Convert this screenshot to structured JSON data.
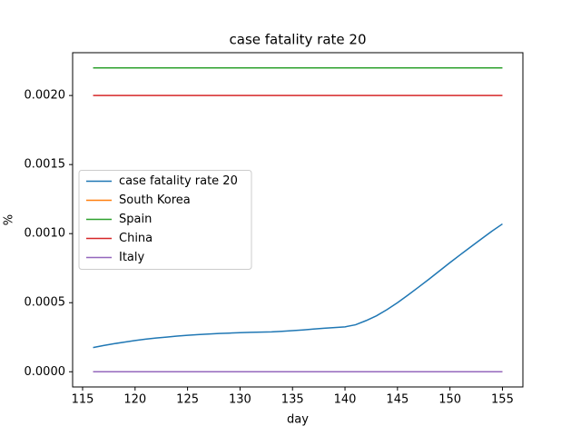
{
  "chart_data": {
    "type": "line",
    "title": "case fatality rate 20",
    "xlabel": "day",
    "ylabel": "%",
    "x": [
      116,
      117,
      118,
      119,
      120,
      121,
      122,
      123,
      124,
      125,
      126,
      127,
      128,
      129,
      130,
      131,
      132,
      133,
      134,
      135,
      136,
      137,
      138,
      139,
      140,
      141,
      142,
      143,
      144,
      145,
      146,
      147,
      148,
      149,
      150,
      151,
      152,
      153,
      154,
      155
    ],
    "series": [
      {
        "name": "case fatality rate 20",
        "color": "#1f77b4",
        "values": [
          0.000175,
          0.00019,
          0.000203,
          0.000215,
          0.000226,
          0.000236,
          0.000244,
          0.000251,
          0.000258,
          0.000264,
          0.000269,
          0.000273,
          0.000277,
          0.00028,
          0.000283,
          0.000285,
          0.000287,
          0.000289,
          0.000293,
          0.000298,
          0.000303,
          0.000309,
          0.000315,
          0.00032,
          0.000325,
          0.00034,
          0.00037,
          0.000405,
          0.00045,
          0.0005,
          0.000555,
          0.000612,
          0.00067,
          0.00073,
          0.00079,
          0.000848,
          0.000905,
          0.000962,
          0.001018,
          0.00107
        ]
      },
      {
        "name": "South Korea",
        "color": "#ff7f0e",
        "values": [
          0,
          0,
          0,
          0,
          0,
          0,
          0,
          0,
          0,
          0,
          0,
          0,
          0,
          0,
          0,
          0,
          0,
          0,
          0,
          0,
          0,
          0,
          0,
          0,
          0,
          0,
          0,
          0,
          0,
          0,
          0,
          0,
          0,
          0,
          0,
          0,
          0,
          0,
          0,
          0
        ]
      },
      {
        "name": "Spain",
        "color": "#2ca02c",
        "values": [
          0.0022,
          0.0022,
          0.0022,
          0.0022,
          0.0022,
          0.0022,
          0.0022,
          0.0022,
          0.0022,
          0.0022,
          0.0022,
          0.0022,
          0.0022,
          0.0022,
          0.0022,
          0.0022,
          0.0022,
          0.0022,
          0.0022,
          0.0022,
          0.0022,
          0.0022,
          0.0022,
          0.0022,
          0.0022,
          0.0022,
          0.0022,
          0.0022,
          0.0022,
          0.0022,
          0.0022,
          0.0022,
          0.0022,
          0.0022,
          0.0022,
          0.0022,
          0.0022,
          0.0022,
          0.0022,
          0.0022
        ]
      },
      {
        "name": "China",
        "color": "#d62728",
        "values": [
          0.002,
          0.002,
          0.002,
          0.002,
          0.002,
          0.002,
          0.002,
          0.002,
          0.002,
          0.002,
          0.002,
          0.002,
          0.002,
          0.002,
          0.002,
          0.002,
          0.002,
          0.002,
          0.002,
          0.002,
          0.002,
          0.002,
          0.002,
          0.002,
          0.002,
          0.002,
          0.002,
          0.002,
          0.002,
          0.002,
          0.002,
          0.002,
          0.002,
          0.002,
          0.002,
          0.002,
          0.002,
          0.002,
          0.002,
          0.002
        ]
      },
      {
        "name": "Italy",
        "color": "#9467bd",
        "values": [
          0,
          0,
          0,
          0,
          0,
          0,
          0,
          0,
          0,
          0,
          0,
          0,
          0,
          0,
          0,
          0,
          0,
          0,
          0,
          0,
          0,
          0,
          0,
          0,
          0,
          0,
          0,
          0,
          0,
          0,
          0,
          0,
          0,
          0,
          0,
          0,
          0,
          0,
          0,
          0
        ]
      }
    ],
    "xlim": [
      114.05,
      156.95
    ],
    "xticks": [
      115,
      120,
      125,
      130,
      135,
      140,
      145,
      150,
      155
    ],
    "ylim": [
      -0.00011,
      0.00231
    ],
    "yticks": [
      {
        "value": 0,
        "label": "0.0000"
      },
      {
        "value": 0.0005,
        "label": "0.0005"
      },
      {
        "value": 0.001,
        "label": "0.0010"
      },
      {
        "value": 0.0015,
        "label": "0.0015"
      },
      {
        "value": 0.002,
        "label": "0.0020"
      }
    ],
    "legend": "center left"
  }
}
